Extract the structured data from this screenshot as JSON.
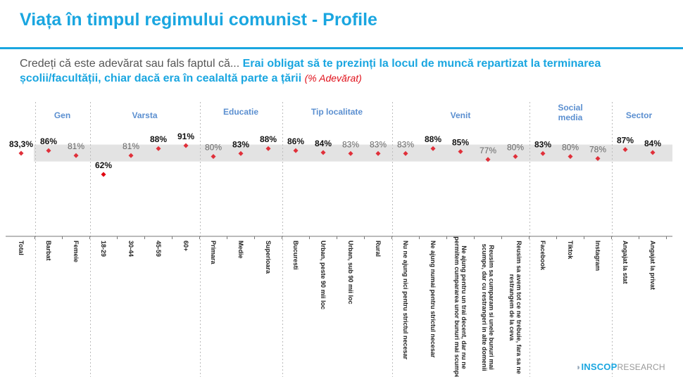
{
  "header": {
    "title": "Viața în timpul regimului comunist - Profile",
    "question_prefix": "Credeți că este adevărat sau fals faptul că...",
    "question_text": "Erai obligat să te prezinți la locul de muncă repartizat la terminarea școlii/facultății, chiar dacă era în cealaltă parte a țării",
    "unit_note": "(% Adevărat)"
  },
  "logo": {
    "brand": "INSCOP",
    "suffix": "RESEARCH"
  },
  "colors": {
    "accent": "#1aa6e0",
    "group_label": "#5b8fd0",
    "marker": "#e0303a",
    "band": "#e3e3e3",
    "label_strong": "#111111",
    "label_weak": "#666666"
  },
  "chart_data": {
    "type": "scatter",
    "title": "",
    "ylim": [
      55,
      95
    ],
    "reference_band": [
      75,
      92
    ],
    "groups": [
      {
        "label": "",
        "span": [
          0,
          0
        ]
      },
      {
        "label": "Gen",
        "span": [
          1,
          2
        ]
      },
      {
        "label": "Varsta",
        "span": [
          3,
          6
        ]
      },
      {
        "label": "Educatie",
        "span": [
          7,
          9
        ]
      },
      {
        "label": "Tip localitate",
        "span": [
          10,
          13
        ]
      },
      {
        "label": "Venit",
        "span": [
          14,
          18
        ]
      },
      {
        "label": "Social media",
        "span": [
          19,
          21
        ]
      },
      {
        "label": "Sector",
        "span": [
          22,
          23
        ]
      }
    ],
    "categories": [
      "Total",
      "Barbat",
      "Femeie",
      "18-29",
      "30-44",
      "45-59",
      "60+",
      "Primara",
      "Medie",
      "Superioara",
      "Bucuresti",
      "Urban, peste 90 mii loc",
      "Urban, sub 90 mii loc",
      "Rural",
      "Nu ne ajung nici pentru strictul necesar",
      "Ne ajung numai pentru strictul necesar",
      "Ne ajung pentru un trai decent, dar nu ne permitem cumpararea unor bunuri mai scumpe",
      "Reusim sa cumparam si unele bunuri mai scumpe, dar cu restrangeri in alte domenii",
      "Reusim sa avem tot ce ne trebuie, fara sa ne restrangem de la ceva",
      "Facebook",
      "Tiktok",
      "Instagram",
      "Angajat la stat",
      "Angajat la privat"
    ],
    "values": [
      83.3,
      86,
      81,
      62,
      81,
      88,
      91,
      80,
      83,
      88,
      86,
      84,
      83,
      83,
      83,
      88,
      85,
      77,
      80,
      83,
      80,
      78,
      87,
      84
    ],
    "value_labels": [
      "83,3%",
      "86%",
      "81%",
      "62%",
      "81%",
      "88%",
      "91%",
      "80%",
      "83%",
      "88%",
      "86%",
      "84%",
      "83%",
      "83%",
      "83%",
      "88%",
      "85%",
      "77%",
      "80%",
      "83%",
      "80%",
      "78%",
      "87%",
      "84%"
    ],
    "label_emphasis": [
      true,
      true,
      false,
      true,
      false,
      true,
      true,
      false,
      true,
      true,
      true,
      true,
      false,
      false,
      false,
      true,
      true,
      false,
      false,
      true,
      false,
      false,
      true,
      true
    ]
  }
}
